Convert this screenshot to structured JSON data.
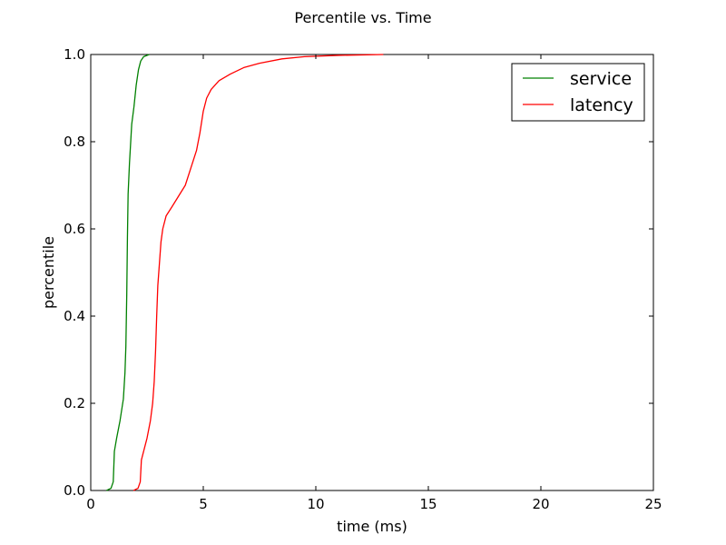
{
  "chart_data": {
    "type": "line",
    "title": "Percentile vs. Time",
    "xlabel": "time (ms)",
    "ylabel": "percentile",
    "xlim": [
      0,
      25
    ],
    "ylim": [
      0.0,
      1.0
    ],
    "xticks": [
      "0",
      "5",
      "10",
      "15",
      "20",
      "25"
    ],
    "yticks": [
      "0.0",
      "0.2",
      "0.4",
      "0.6",
      "0.8",
      "1.0"
    ],
    "grid": false,
    "legend_position": "top-right",
    "series": [
      {
        "name": "service",
        "color": "#008000",
        "points": [
          [
            0.7,
            0.0
          ],
          [
            0.9,
            0.005
          ],
          [
            1.0,
            0.02
          ],
          [
            1.05,
            0.09
          ],
          [
            1.15,
            0.12
          ],
          [
            1.3,
            0.16
          ],
          [
            1.45,
            0.21
          ],
          [
            1.52,
            0.27
          ],
          [
            1.56,
            0.33
          ],
          [
            1.6,
            0.45
          ],
          [
            1.63,
            0.58
          ],
          [
            1.66,
            0.68
          ],
          [
            1.72,
            0.75
          ],
          [
            1.82,
            0.84
          ],
          [
            1.92,
            0.88
          ],
          [
            2.02,
            0.93
          ],
          [
            2.12,
            0.965
          ],
          [
            2.22,
            0.985
          ],
          [
            2.35,
            0.995
          ],
          [
            2.6,
            1.0
          ]
        ]
      },
      {
        "name": "latency",
        "color": "#ff0000",
        "points": [
          [
            1.9,
            0.0
          ],
          [
            2.1,
            0.005
          ],
          [
            2.2,
            0.02
          ],
          [
            2.25,
            0.07
          ],
          [
            2.35,
            0.09
          ],
          [
            2.5,
            0.12
          ],
          [
            2.65,
            0.16
          ],
          [
            2.75,
            0.2
          ],
          [
            2.82,
            0.25
          ],
          [
            2.88,
            0.32
          ],
          [
            2.93,
            0.4
          ],
          [
            2.98,
            0.47
          ],
          [
            3.05,
            0.52
          ],
          [
            3.12,
            0.57
          ],
          [
            3.2,
            0.6
          ],
          [
            3.35,
            0.63
          ],
          [
            3.6,
            0.65
          ],
          [
            3.9,
            0.675
          ],
          [
            4.2,
            0.7
          ],
          [
            4.45,
            0.74
          ],
          [
            4.7,
            0.78
          ],
          [
            4.85,
            0.82
          ],
          [
            5.0,
            0.87
          ],
          [
            5.15,
            0.9
          ],
          [
            5.35,
            0.92
          ],
          [
            5.7,
            0.94
          ],
          [
            6.2,
            0.955
          ],
          [
            6.8,
            0.97
          ],
          [
            7.5,
            0.98
          ],
          [
            8.5,
            0.99
          ],
          [
            9.5,
            0.995
          ],
          [
            11.0,
            0.998
          ],
          [
            13.0,
            1.0
          ]
        ]
      }
    ]
  }
}
